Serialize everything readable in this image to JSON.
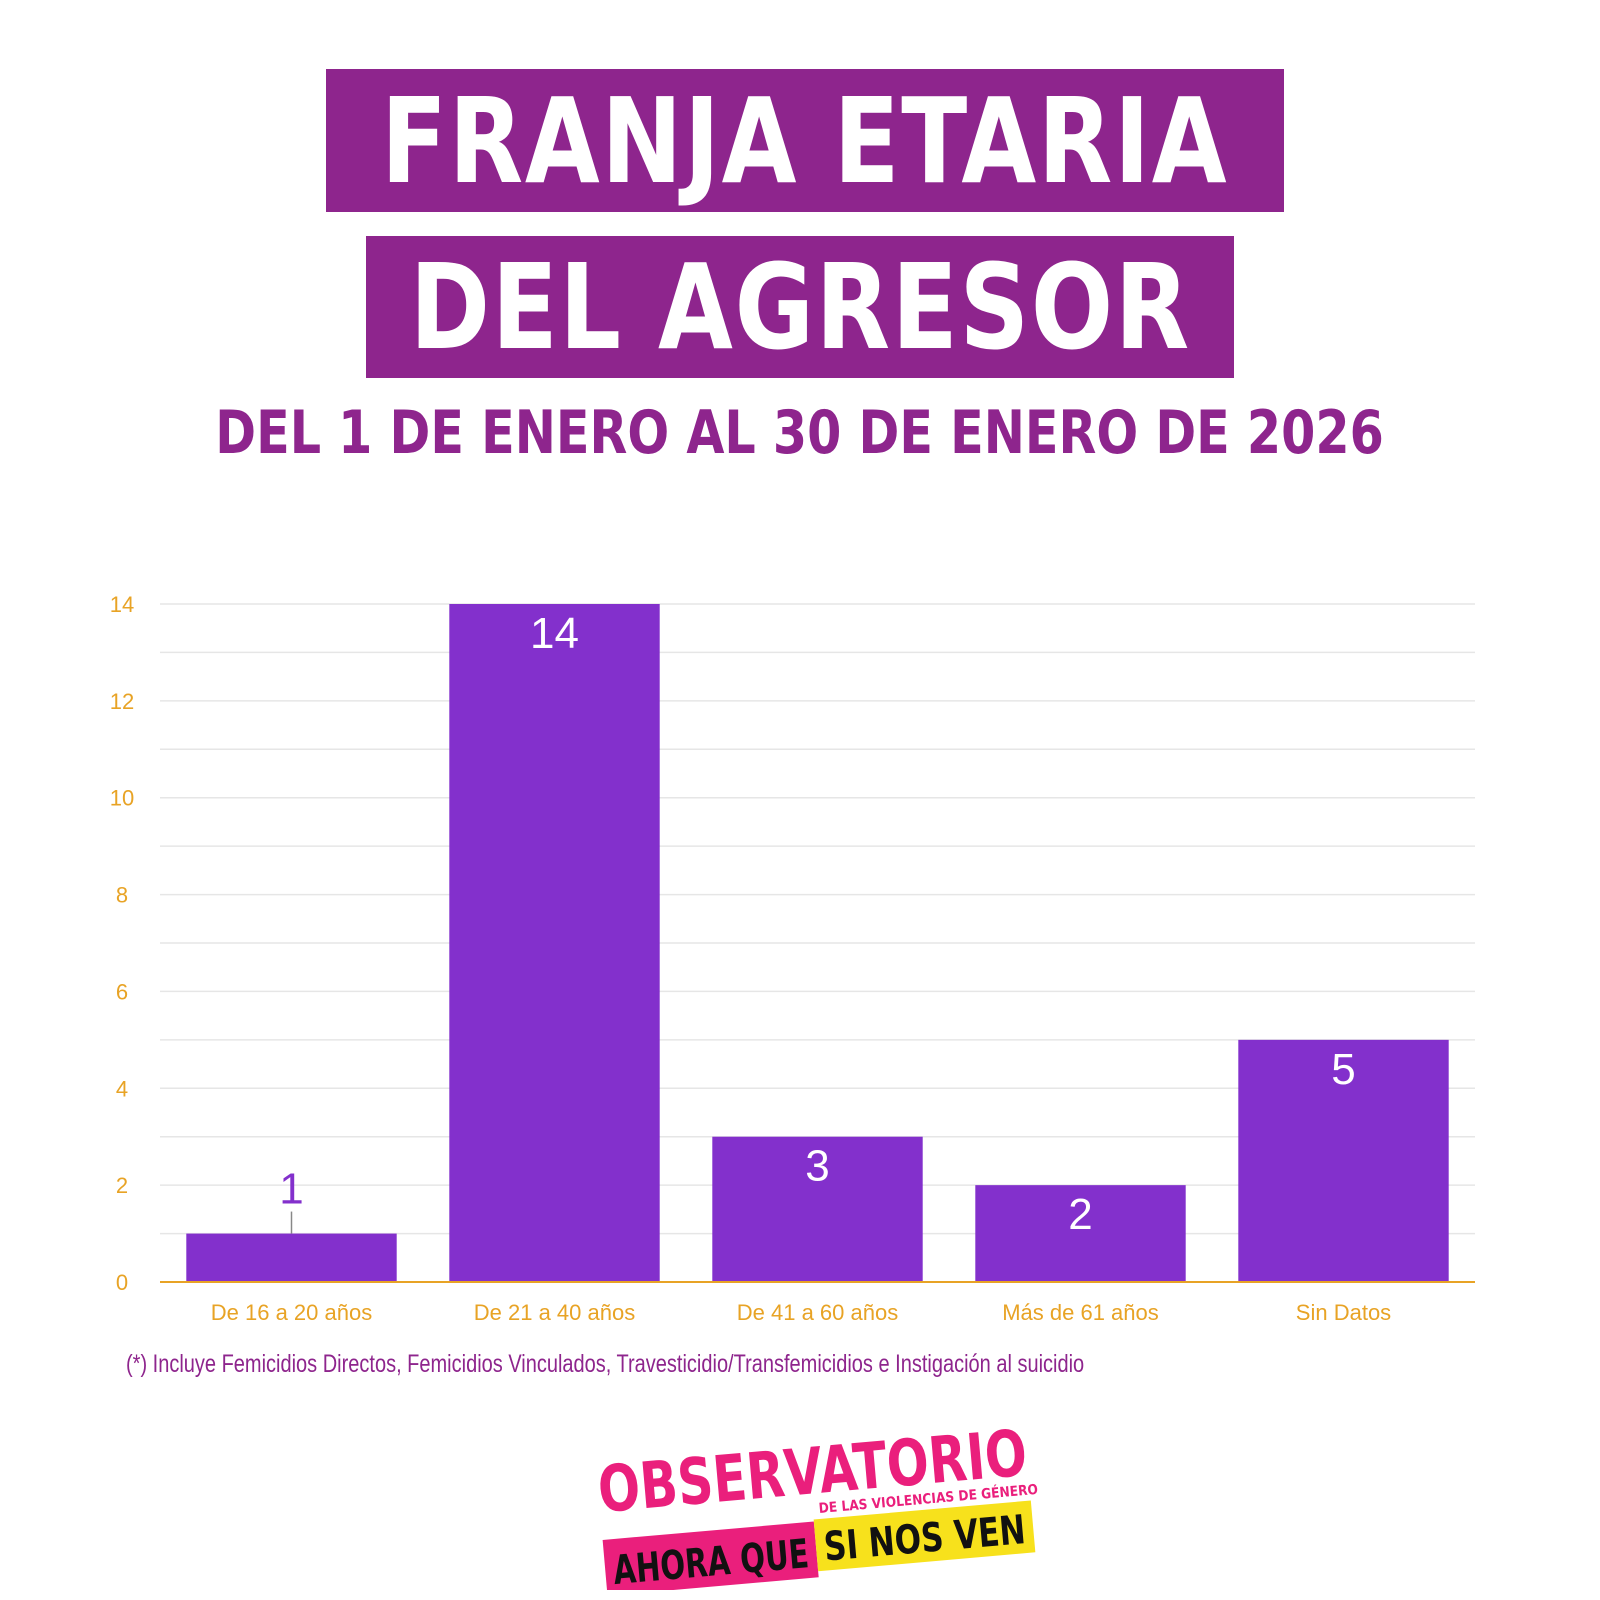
{
  "title_line1": "FRANJA ETARIA",
  "title_line2": "DEL AGRESOR",
  "subtitle": "DEL 1 DE ENERO AL 30 DE ENERO DE 2026",
  "footnote": "(*) Incluye Femicidios Directos, Femicidios Vinculados,  Travesticidio/Transfemicidios e Instigación al suicidio",
  "logo": {
    "line1": "OBSERVATORIO",
    "line2": "DE LAS VIOLENCIAS DE GÉNERO",
    "line3a": "AHORA QUE",
    "line3b": "SI NOS VEN"
  },
  "colors": {
    "title_bg": "#8e258d",
    "bar": "#8330cc",
    "axis_text": "#e8a325",
    "grid": "#e6e6e6",
    "logo_pink": "#ea1f7c",
    "logo_yellow": "#f7e11c"
  },
  "chart_data": {
    "type": "bar",
    "categories": [
      "De 16 a 20 años",
      "De 21 a 40 años",
      "De 41 a 60 años",
      "Más de 61 años",
      "Sin Datos"
    ],
    "values": [
      1,
      14,
      3,
      2,
      5
    ],
    "ylim": [
      0,
      14
    ],
    "yticks": [
      0,
      2,
      4,
      6,
      8,
      10,
      12,
      14
    ],
    "grid": true,
    "xlabel": "",
    "ylabel": ""
  }
}
